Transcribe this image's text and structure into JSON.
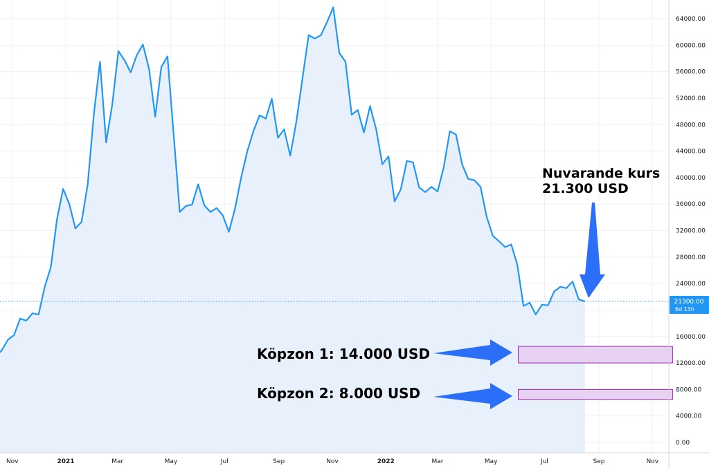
{
  "chart_data": {
    "type": "area",
    "title": "",
    "xlabel": "",
    "ylabel": "",
    "ylim": [
      0,
      66000
    ],
    "x_ticks": [
      {
        "label": "Nov",
        "date": "2020-11-01",
        "bold": false
      },
      {
        "label": "2021",
        "date": "2021-01-01",
        "bold": true
      },
      {
        "label": "Mar",
        "date": "2021-03-01",
        "bold": false
      },
      {
        "label": "May",
        "date": "2021-05-01",
        "bold": false
      },
      {
        "label": "Jul",
        "date": "2021-07-01",
        "bold": false
      },
      {
        "label": "Sep",
        "date": "2021-09-01",
        "bold": false
      },
      {
        "label": "Nov",
        "date": "2021-11-01",
        "bold": false
      },
      {
        "label": "2022",
        "date": "2022-01-01",
        "bold": true
      },
      {
        "label": "Mar",
        "date": "2022-03-01",
        "bold": false
      },
      {
        "label": "May",
        "date": "2022-05-01",
        "bold": false
      },
      {
        "label": "Jul",
        "date": "2022-07-01",
        "bold": false
      },
      {
        "label": "Sep",
        "date": "2022-09-01",
        "bold": false
      },
      {
        "label": "Nov",
        "date": "2022-11-01",
        "bold": false
      }
    ],
    "y_ticks": [
      "0.00",
      "4000.00",
      "8000.00",
      "12000.00",
      "16000.00",
      "20000.00",
      "24000.00",
      "28000.00",
      "32000.00",
      "36000.00",
      "40000.00",
      "44000.00",
      "48000.00",
      "52000.00",
      "56000.00",
      "60000.00",
      "64000.00"
    ],
    "grid": true,
    "series": [
      {
        "color": "#2196f3",
        "fill": "#e8f1fb",
        "points": [
          [
            "2020-10-13",
            13000
          ],
          [
            "2020-10-20",
            13900
          ],
          [
            "2020-10-27",
            15500
          ],
          [
            "2020-11-03",
            16200
          ],
          [
            "2020-11-10",
            18700
          ],
          [
            "2020-11-17",
            18400
          ],
          [
            "2020-11-24",
            19500
          ],
          [
            "2020-12-01",
            19300
          ],
          [
            "2020-12-08",
            23500
          ],
          [
            "2020-12-15",
            26500
          ],
          [
            "2020-12-22",
            33700
          ],
          [
            "2020-12-29",
            38300
          ],
          [
            "2021-01-05",
            36000
          ],
          [
            "2021-01-12",
            32300
          ],
          [
            "2021-01-19",
            33300
          ],
          [
            "2021-01-26",
            39000
          ],
          [
            "2021-02-02",
            49500
          ],
          [
            "2021-02-09",
            57500
          ],
          [
            "2021-02-16",
            45300
          ],
          [
            "2021-02-23",
            51000
          ],
          [
            "2021-03-02",
            59100
          ],
          [
            "2021-03-09",
            57700
          ],
          [
            "2021-03-16",
            55900
          ],
          [
            "2021-03-23",
            58500
          ],
          [
            "2021-03-30",
            60100
          ],
          [
            "2021-04-06",
            56400
          ],
          [
            "2021-04-13",
            49200
          ],
          [
            "2021-04-20",
            56700
          ],
          [
            "2021-04-27",
            58300
          ],
          [
            "2021-05-04",
            46500
          ],
          [
            "2021-05-11",
            34800
          ],
          [
            "2021-05-18",
            35700
          ],
          [
            "2021-05-25",
            35900
          ],
          [
            "2021-06-01",
            39000
          ],
          [
            "2021-06-08",
            35800
          ],
          [
            "2021-06-15",
            34800
          ],
          [
            "2021-06-22",
            35400
          ],
          [
            "2021-06-29",
            34300
          ],
          [
            "2021-07-06",
            31800
          ],
          [
            "2021-07-13",
            35300
          ],
          [
            "2021-07-20",
            40000
          ],
          [
            "2021-07-27",
            44000
          ],
          [
            "2021-08-03",
            47000
          ],
          [
            "2021-08-10",
            49400
          ],
          [
            "2021-08-17",
            48900
          ],
          [
            "2021-08-24",
            51900
          ],
          [
            "2021-08-31",
            46000
          ],
          [
            "2021-09-07",
            47300
          ],
          [
            "2021-09-14",
            43300
          ],
          [
            "2021-09-21",
            48500
          ],
          [
            "2021-09-28",
            55000
          ],
          [
            "2021-10-05",
            61500
          ],
          [
            "2021-10-12",
            61000
          ],
          [
            "2021-10-19",
            61500
          ],
          [
            "2021-10-26",
            63500
          ],
          [
            "2021-11-02",
            65700
          ],
          [
            "2021-11-09",
            58800
          ],
          [
            "2021-11-16",
            57500
          ],
          [
            "2021-11-23",
            49500
          ],
          [
            "2021-11-30",
            50200
          ],
          [
            "2021-12-07",
            46800
          ],
          [
            "2021-12-14",
            50800
          ],
          [
            "2021-12-21",
            47300
          ],
          [
            "2021-12-28",
            42000
          ],
          [
            "2022-01-04",
            43200
          ],
          [
            "2022-01-11",
            36400
          ],
          [
            "2022-01-18",
            38200
          ],
          [
            "2022-01-25",
            42500
          ],
          [
            "2022-02-01",
            42300
          ],
          [
            "2022-02-08",
            38500
          ],
          [
            "2022-02-15",
            37800
          ],
          [
            "2022-02-22",
            38600
          ],
          [
            "2022-03-01",
            37900
          ],
          [
            "2022-03-08",
            41500
          ],
          [
            "2022-03-15",
            47000
          ],
          [
            "2022-03-22",
            46500
          ],
          [
            "2022-03-29",
            42000
          ],
          [
            "2022-04-05",
            39800
          ],
          [
            "2022-04-12",
            39600
          ],
          [
            "2022-04-19",
            38600
          ],
          [
            "2022-04-26",
            34100
          ],
          [
            "2022-05-03",
            31200
          ],
          [
            "2022-05-10",
            30400
          ],
          [
            "2022-05-17",
            29500
          ],
          [
            "2022-05-24",
            29900
          ],
          [
            "2022-05-31",
            26800
          ],
          [
            "2022-06-07",
            20600
          ],
          [
            "2022-06-14",
            21100
          ],
          [
            "2022-06-21",
            19300
          ],
          [
            "2022-06-28",
            20800
          ],
          [
            "2022-07-05",
            20700
          ],
          [
            "2022-07-12",
            22800
          ],
          [
            "2022-07-19",
            23500
          ],
          [
            "2022-07-26",
            23300
          ],
          [
            "2022-08-02",
            24300
          ],
          [
            "2022-08-09",
            21600
          ],
          [
            "2022-08-16",
            21300
          ]
        ]
      }
    ],
    "price_line": {
      "value": 21300,
      "label": "21300.00",
      "sublabel": "6d 13h",
      "color": "#2196f3"
    },
    "zones": [
      {
        "from": 12000,
        "to": 14500,
        "from_date": "2022-06-01",
        "to_date": "2022-11-24",
        "fill": "#e8d2f2",
        "stroke": "#9c27b0"
      },
      {
        "from": 6500,
        "to": 8000,
        "from_date": "2022-06-01",
        "to_date": "2022-11-24",
        "fill": "#e8d2f2",
        "stroke": "#9c27b0"
      }
    ],
    "annotations": {
      "current": [
        "Nuvarande kurs",
        "21.300 USD"
      ],
      "zone1": "Köpzon 1: 14.000 USD",
      "zone2": "Köpzon 2: 8.000 USD"
    },
    "arrow_color": "#2b6ef7"
  }
}
